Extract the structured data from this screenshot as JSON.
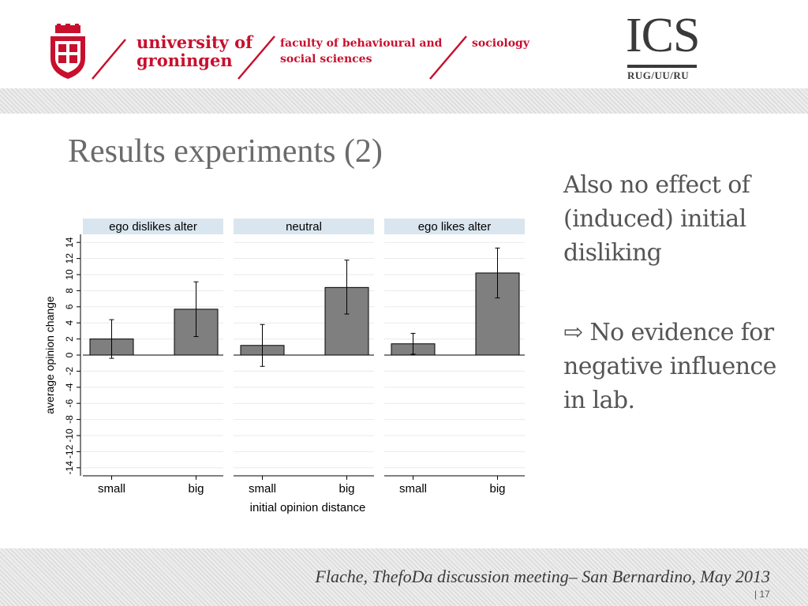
{
  "header": {
    "university_line1": "university of",
    "university_line2": "groningen",
    "faculty_line1": "faculty of behavioural and",
    "faculty_line2": "social sciences",
    "department": "sociology",
    "ics_logo": "ICS",
    "ics_sub": "RUG/UU/RU",
    "crest_icon": "university-crest-icon",
    "accent_color": "#c8102e"
  },
  "slide": {
    "title": "Results experiments (2)",
    "side_text_1": "Also no effect of (induced) initial disliking",
    "side_arrow_icon": "⇨",
    "side_text_2": "No evidence for negative influence in lab.",
    "footer": "Flache, ThefoDa discussion meeting– San Bernardino, May 2013",
    "page_number": "| 17"
  },
  "chart_data": {
    "type": "bar",
    "ylabel": "average opinion change",
    "xlabel": "initial opinion distance",
    "ylim": [
      -15,
      15
    ],
    "yticks": [
      -14,
      -12,
      -10,
      -8,
      -6,
      -4,
      -2,
      0,
      2,
      4,
      6,
      8,
      10,
      12,
      14
    ],
    "categories": [
      "small",
      "big"
    ],
    "bar_color": "#7f7f7f",
    "panel_header_color": "#d9e6ef",
    "panels": [
      {
        "title": "ego dislikes alter",
        "bars": [
          {
            "category": "small",
            "value": 2.0,
            "lower": -0.4,
            "upper": 4.4
          },
          {
            "category": "big",
            "value": 5.7,
            "lower": 2.3,
            "upper": 9.1
          }
        ]
      },
      {
        "title": "neutral",
        "bars": [
          {
            "category": "small",
            "value": 1.2,
            "lower": -1.4,
            "upper": 3.8
          },
          {
            "category": "big",
            "value": 8.4,
            "lower": 5.1,
            "upper": 11.8
          }
        ]
      },
      {
        "title": "ego likes alter",
        "bars": [
          {
            "category": "small",
            "value": 1.4,
            "lower": 0.1,
            "upper": 2.7
          },
          {
            "category": "big",
            "value": 10.2,
            "lower": 7.1,
            "upper": 13.3
          }
        ]
      }
    ]
  }
}
